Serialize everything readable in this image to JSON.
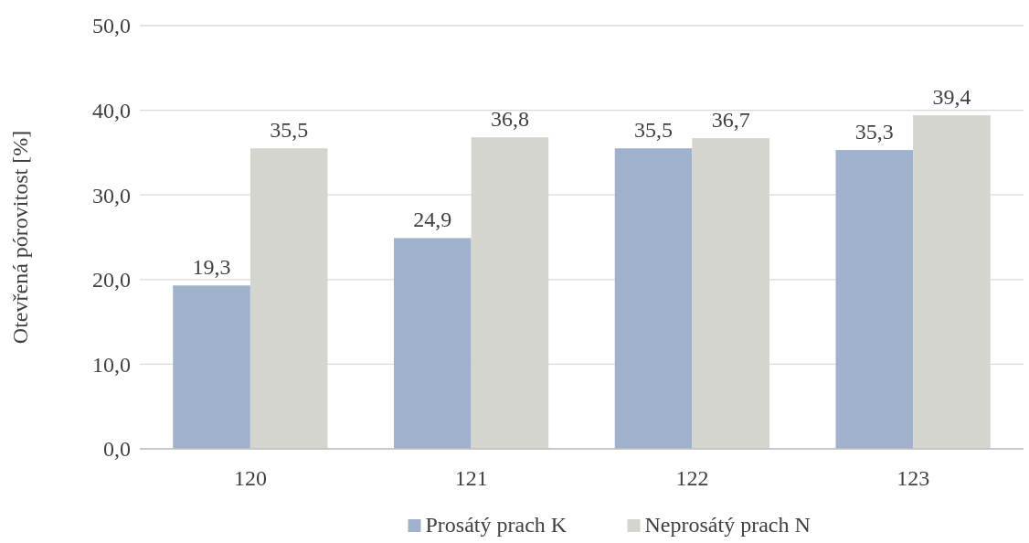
{
  "chart_data": {
    "type": "bar",
    "ylabel": "Otevřená pórovitost [%]",
    "categories": [
      "120",
      "121",
      "122",
      "123"
    ],
    "series": [
      {
        "name": "Prosátý prach K",
        "color": "#a0b1cb",
        "values": [
          19.3,
          24.9,
          35.5,
          35.3
        ],
        "value_labels": [
          "19,3",
          "24,9",
          "35,5",
          "35,3"
        ]
      },
      {
        "name": "Neprosátý prach N",
        "color": "#d3d5ce",
        "values": [
          35.5,
          36.8,
          36.7,
          39.4
        ],
        "value_labels": [
          "35,5",
          "36,8",
          "36,7",
          "39,4"
        ]
      }
    ],
    "ylim": [
      0,
      50
    ],
    "yticks": [
      {
        "value": 0,
        "label": "0,0"
      },
      {
        "value": 10,
        "label": "10,0"
      },
      {
        "value": 20,
        "label": "20,0"
      },
      {
        "value": 30,
        "label": "30,0"
      },
      {
        "value": 40,
        "label": "40,0"
      },
      {
        "value": 50,
        "label": "50,0"
      }
    ],
    "grid": "y",
    "legend": "bottom"
  }
}
